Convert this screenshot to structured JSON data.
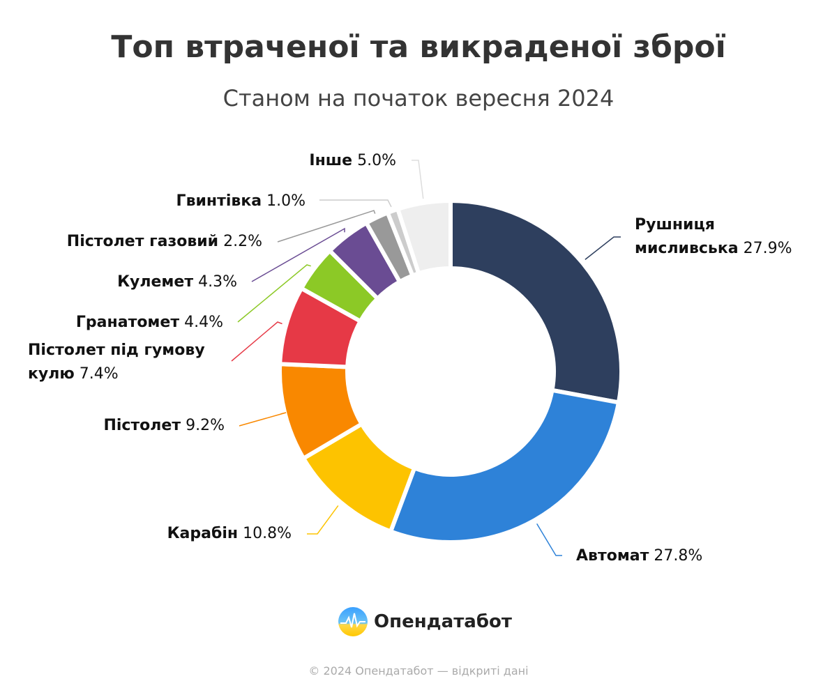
{
  "chart_data": {
    "type": "donut",
    "title": "Топ втраченої та викраденої зброї",
    "subtitle": "Станом на початок вересня 2024",
    "categories": [
      "Рушниця мисливська",
      "Автомат",
      "Карабін",
      "Пістолет",
      "Пістолет під гумову кулю",
      "Гранатомет",
      "Кулемет",
      "Пістолет газовий",
      "Гвинтівка",
      "Інше"
    ],
    "values": [
      27.9,
      27.8,
      10.8,
      9.2,
      7.4,
      4.4,
      4.3,
      2.2,
      1.0,
      5.0
    ],
    "value_labels": [
      "27.9%",
      "27.8%",
      "10.8%",
      "9.2%",
      "7.4%",
      "4.4%",
      "4.3%",
      "2.2%",
      "1.0%",
      "5.0%"
    ],
    "colors": [
      "#2e3f5e",
      "#2e82d8",
      "#fdc300",
      "#f98800",
      "#e63946",
      "#8cc926",
      "#6a4c93",
      "#999999",
      "#cccccc",
      "#eeeeee"
    ]
  },
  "brand": "Опендатабот",
  "footer": "© 2024 Опендатабот — відкриті дані"
}
